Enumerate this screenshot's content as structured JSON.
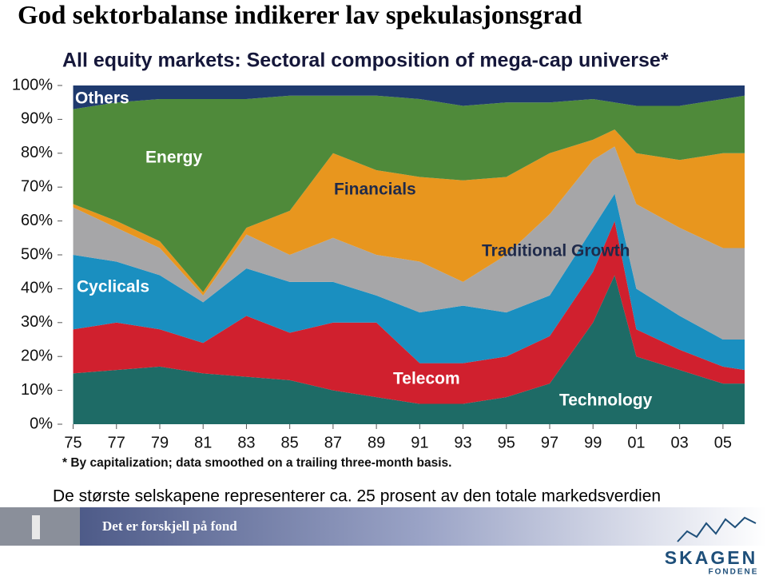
{
  "slide": {
    "title": "God sektorbalanse indikerer lav spekulasjonsgrad",
    "caption": "De største selskapene representerer ca. 25 prosent  av den totale markedsverdien",
    "tagline": "Det er forskjell på fond",
    "logo": "SKAGEN",
    "logo_sub": "FONDENE"
  },
  "chart_data": {
    "type": "stacked_area",
    "title": "All equity markets: Sectoral composition of mega-cap universe*",
    "footnote": "* By capitalization; data smoothed on a trailing three-month basis.",
    "x": [
      1975,
      1977,
      1979,
      1981,
      1983,
      1985,
      1987,
      1989,
      1991,
      1993,
      1995,
      1997,
      1999,
      2000,
      2001,
      2003,
      2005,
      2006
    ],
    "series": [
      {
        "name": "Technology",
        "color": "#1e6b66",
        "values": [
          15,
          16,
          17,
          15,
          14,
          13,
          10,
          8,
          6,
          6,
          8,
          12,
          30,
          44,
          20,
          16,
          12,
          12
        ]
      },
      {
        "name": "Telecom",
        "color": "#d0202e",
        "values": [
          13,
          14,
          11,
          9,
          18,
          14,
          20,
          22,
          12,
          12,
          12,
          14,
          15,
          16,
          8,
          6,
          5,
          4
        ]
      },
      {
        "name": "Cyclicals",
        "color": "#1a8fc0",
        "values": [
          22,
          18,
          16,
          12,
          14,
          15,
          12,
          8,
          15,
          17,
          13,
          12,
          13,
          8,
          12,
          10,
          8,
          9
        ]
      },
      {
        "name": "Traditional Growth",
        "color": "#a6a6a8",
        "values": [
          14,
          10,
          8,
          2,
          10,
          8,
          13,
          12,
          15,
          7,
          17,
          24,
          20,
          14,
          25,
          26,
          27,
          27
        ]
      },
      {
        "name": "Financials",
        "color": "#e8961e",
        "values": [
          1,
          2,
          2,
          1,
          2,
          13,
          25,
          25,
          25,
          30,
          23,
          18,
          6,
          5,
          15,
          20,
          28,
          28
        ]
      },
      {
        "name": "Energy",
        "color": "#4f8a3a",
        "values": [
          28,
          35,
          42,
          57,
          38,
          34,
          17,
          22,
          23,
          22,
          22,
          15,
          12,
          8,
          14,
          16,
          16,
          17
        ]
      },
      {
        "name": "Others",
        "color": "#1f3a6e",
        "values": [
          7,
          5,
          4,
          4,
          4,
          3,
          3,
          3,
          4,
          6,
          5,
          5,
          4,
          5,
          6,
          6,
          4,
          3
        ]
      }
    ],
    "xlim": [
      1974.5,
      2006
    ],
    "xticks": [
      {
        "value": 1975,
        "label": "75"
      },
      {
        "value": 1977,
        "label": "77"
      },
      {
        "value": 1979,
        "label": "79"
      },
      {
        "value": 1981,
        "label": "81"
      },
      {
        "value": 1983,
        "label": "83"
      },
      {
        "value": 1985,
        "label": "85"
      },
      {
        "value": 1987,
        "label": "87"
      },
      {
        "value": 1989,
        "label": "89"
      },
      {
        "value": 1991,
        "label": "91"
      },
      {
        "value": 1993,
        "label": "93"
      },
      {
        "value": 1995,
        "label": "95"
      },
      {
        "value": 1997,
        "label": "97"
      },
      {
        "value": 1999,
        "label": "99"
      },
      {
        "value": 2001,
        "label": "01"
      },
      {
        "value": 2003,
        "label": "03"
      },
      {
        "value": 2005,
        "label": "05"
      }
    ],
    "ylim": [
      0,
      100
    ],
    "yticks": [
      {
        "value": 0,
        "label": "0%"
      },
      {
        "value": 10,
        "label": "10%"
      },
      {
        "value": 20,
        "label": "20%"
      },
      {
        "value": 30,
        "label": "30%"
      },
      {
        "value": 40,
        "label": "40%"
      },
      {
        "value": 50,
        "label": "50%"
      },
      {
        "value": 60,
        "label": "60%"
      },
      {
        "value": 70,
        "label": "70%"
      },
      {
        "value": 80,
        "label": "80%"
      },
      {
        "value": 90,
        "label": "90%"
      },
      {
        "value": 100,
        "label": "100%"
      }
    ]
  }
}
